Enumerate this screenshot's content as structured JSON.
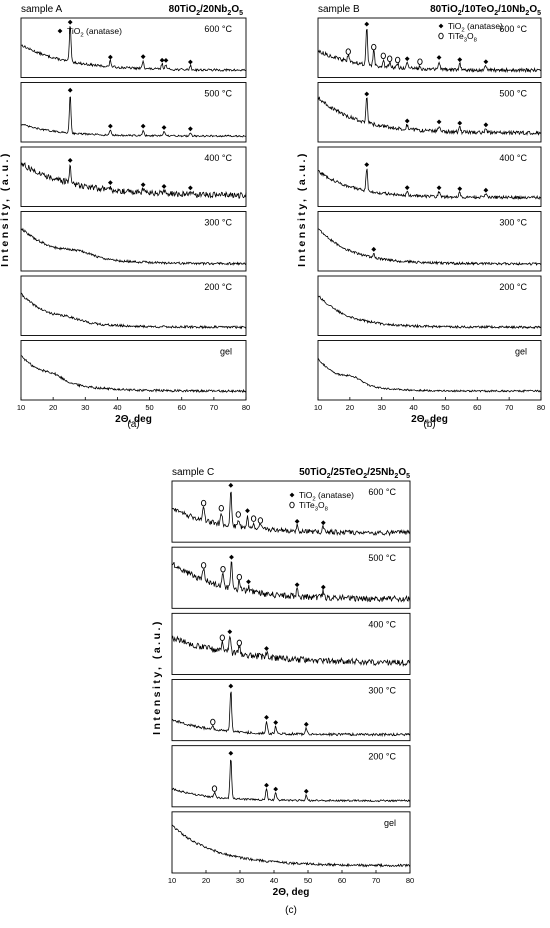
{
  "chart_data": [
    {
      "type": "line",
      "panel_label": "(a)",
      "sample_label": "sample A",
      "title": "80TiO2/20Nb2O5",
      "legend": [
        {
          "marker": "diamond",
          "label": "TiO2 (anatase)"
        }
      ],
      "xlabel": "2Θ, deg",
      "ylabel": "Intensity, (a.u.)",
      "xlim": [
        10,
        80
      ],
      "xticks": [
        10,
        20,
        30,
        40,
        50,
        60,
        70,
        80
      ],
      "series": [
        {
          "name": "600 °C",
          "background": {
            "start": 0.55,
            "decay": 0.07,
            "floor": 0.12,
            "noise": 0.02
          },
          "peaks": [
            {
              "x": 25.3,
              "h": 0.62,
              "marker": "diamond"
            },
            {
              "x": 37.8,
              "h": 0.1,
              "marker": "diamond"
            },
            {
              "x": 48.0,
              "h": 0.14,
              "marker": "diamond"
            },
            {
              "x": 53.9,
              "h": 0.09,
              "marker": "diamond"
            },
            {
              "x": 55.1,
              "h": 0.09,
              "marker": "diamond"
            },
            {
              "x": 62.7,
              "h": 0.07,
              "marker": "diamond"
            }
          ]
        },
        {
          "name": "500 °C",
          "background": {
            "start": 0.3,
            "decay": 0.09,
            "floor": 0.1,
            "noise": 0.015
          },
          "peaks": [
            {
              "x": 25.3,
              "h": 0.66,
              "marker": "diamond"
            },
            {
              "x": 37.8,
              "h": 0.09,
              "marker": "diamond"
            },
            {
              "x": 48.0,
              "h": 0.1,
              "marker": "diamond"
            },
            {
              "x": 54.5,
              "h": 0.08,
              "marker": "diamond"
            },
            {
              "x": 62.7,
              "h": 0.06,
              "marker": "diamond"
            }
          ]
        },
        {
          "name": "400 °C",
          "background": {
            "start": 0.72,
            "decay": 0.06,
            "floor": 0.18,
            "noise": 0.05
          },
          "peaks": [
            {
              "x": 25.3,
              "h": 0.32,
              "marker": "diamond"
            },
            {
              "x": 37.8,
              "h": 0.06,
              "marker": "diamond"
            },
            {
              "x": 48.0,
              "h": 0.07,
              "marker": "diamond"
            },
            {
              "x": 54.5,
              "h": 0.06,
              "marker": "diamond"
            },
            {
              "x": 62.7,
              "h": 0.05,
              "marker": "diamond"
            }
          ]
        },
        {
          "name": "300 °C",
          "background": {
            "start": 0.72,
            "decay": 0.08,
            "floor": 0.12,
            "noise": 0.02,
            "hump": {
              "x": 28,
              "h": 0.08,
              "w": 6
            }
          },
          "peaks": []
        },
        {
          "name": "200 °C",
          "background": {
            "start": 0.7,
            "decay": 0.1,
            "floor": 0.14,
            "noise": 0.02,
            "hump": {
              "x": 25,
              "h": 0.05,
              "w": 5
            }
          },
          "peaks": []
        },
        {
          "name": "gel",
          "background": {
            "start": 0.75,
            "decay": 0.1,
            "floor": 0.15,
            "noise": 0.02,
            "hump": {
              "x": 20,
              "h": 0.08,
              "w": 4
            }
          },
          "peaks": []
        }
      ]
    },
    {
      "type": "line",
      "panel_label": "(b)",
      "sample_label": "sample B",
      "title": "80TiO2/10TeO2/10Nb2O5",
      "legend": [
        {
          "marker": "diamond",
          "label": "TiO2 (anatase)"
        },
        {
          "marker": "circle",
          "label": "TiTe3O8"
        }
      ],
      "xlabel": "2Θ, deg",
      "ylabel": "Intensity, (a.u.)",
      "xlim": [
        10,
        80
      ],
      "xticks": [
        10,
        20,
        30,
        40,
        50,
        60,
        70,
        80
      ],
      "series": [
        {
          "name": "600 °C",
          "background": {
            "start": 0.45,
            "decay": 0.08,
            "floor": 0.12,
            "noise": 0.03
          },
          "peaks": [
            {
              "x": 19.5,
              "h": 0.1,
              "marker": "circle"
            },
            {
              "x": 25.3,
              "h": 0.62,
              "marker": "diamond"
            },
            {
              "x": 27.5,
              "h": 0.25,
              "marker": "circle"
            },
            {
              "x": 30.5,
              "h": 0.12,
              "marker": "circle"
            },
            {
              "x": 32.5,
              "h": 0.08,
              "marker": "circle"
            },
            {
              "x": 35.0,
              "h": 0.07,
              "marker": "circle"
            },
            {
              "x": 38.0,
              "h": 0.1,
              "marker": "diamond"
            },
            {
              "x": 42.0,
              "h": 0.06,
              "marker": "circle"
            },
            {
              "x": 48.0,
              "h": 0.14,
              "marker": "diamond"
            },
            {
              "x": 54.5,
              "h": 0.11,
              "marker": "diamond"
            },
            {
              "x": 62.7,
              "h": 0.08,
              "marker": "diamond"
            }
          ]
        },
        {
          "name": "500 °C",
          "background": {
            "start": 0.75,
            "decay": 0.08,
            "floor": 0.15,
            "noise": 0.03
          },
          "peaks": [
            {
              "x": 25.3,
              "h": 0.42,
              "marker": "diamond"
            },
            {
              "x": 38.0,
              "h": 0.08,
              "marker": "diamond"
            },
            {
              "x": 48.0,
              "h": 0.1,
              "marker": "diamond"
            },
            {
              "x": 54.5,
              "h": 0.09,
              "marker": "diamond"
            },
            {
              "x": 62.7,
              "h": 0.07,
              "marker": "diamond"
            }
          ]
        },
        {
          "name": "400 °C",
          "background": {
            "start": 0.6,
            "decay": 0.09,
            "floor": 0.15,
            "noise": 0.025
          },
          "peaks": [
            {
              "x": 25.3,
              "h": 0.38,
              "marker": "diamond"
            },
            {
              "x": 38.0,
              "h": 0.07,
              "marker": "diamond"
            },
            {
              "x": 48.0,
              "h": 0.09,
              "marker": "diamond"
            },
            {
              "x": 54.5,
              "h": 0.08,
              "marker": "diamond"
            },
            {
              "x": 62.7,
              "h": 0.06,
              "marker": "diamond"
            }
          ]
        },
        {
          "name": "300 °C",
          "background": {
            "start": 0.72,
            "decay": 0.1,
            "floor": 0.12,
            "noise": 0.02
          },
          "peaks": [
            {
              "x": 27.5,
              "h": 0.08,
              "marker": "diamond"
            }
          ]
        },
        {
          "name": "200 °C",
          "background": {
            "start": 0.68,
            "decay": 0.11,
            "floor": 0.14,
            "noise": 0.02
          },
          "peaks": []
        },
        {
          "name": "gel",
          "background": {
            "start": 0.7,
            "decay": 0.12,
            "floor": 0.15,
            "noise": 0.015,
            "hump": {
              "x": 21,
              "h": 0.1,
              "w": 4
            }
          },
          "peaks": []
        }
      ]
    },
    {
      "type": "line",
      "panel_label": "(c)",
      "sample_label": "sample C",
      "title": "50TiO2/25TeO2/25Nb2O5",
      "legend": [
        {
          "marker": "diamond",
          "label": "TiO2 (anatase)"
        },
        {
          "marker": "circle",
          "label": "TiTe3O8"
        }
      ],
      "xlabel": "2Θ, deg",
      "ylabel": "Intensity, (a.u.)",
      "xlim": [
        10,
        80
      ],
      "xticks": [
        10,
        20,
        30,
        40,
        50,
        60,
        70,
        80
      ],
      "series": [
        {
          "name": "600 °C",
          "background": {
            "start": 0.55,
            "decay": 0.07,
            "floor": 0.15,
            "noise": 0.04
          },
          "peaks": [
            {
              "x": 19.3,
              "h": 0.22,
              "marker": "circle"
            },
            {
              "x": 24.5,
              "h": 0.2,
              "marker": "circle"
            },
            {
              "x": 27.3,
              "h": 0.6,
              "marker": "diamond"
            },
            {
              "x": 29.5,
              "h": 0.14,
              "marker": "circle"
            },
            {
              "x": 32.2,
              "h": 0.22,
              "marker": "diamond"
            },
            {
              "x": 34.0,
              "h": 0.1,
              "marker": "circle"
            },
            {
              "x": 36.0,
              "h": 0.08,
              "marker": "circle"
            },
            {
              "x": 46.8,
              "h": 0.1,
              "marker": "diamond"
            },
            {
              "x": 54.5,
              "h": 0.09,
              "marker": "diamond"
            }
          ]
        },
        {
          "name": "500 °C",
          "background": {
            "start": 0.75,
            "decay": 0.07,
            "floor": 0.15,
            "noise": 0.05
          },
          "peaks": [
            {
              "x": 19.3,
              "h": 0.18,
              "marker": "circle"
            },
            {
              "x": 25.0,
              "h": 0.22,
              "marker": "circle"
            },
            {
              "x": 27.5,
              "h": 0.45,
              "marker": "diamond"
            },
            {
              "x": 29.8,
              "h": 0.15,
              "marker": "circle"
            },
            {
              "x": 32.5,
              "h": 0.1,
              "marker": "diamond"
            },
            {
              "x": 46.8,
              "h": 0.13,
              "marker": "diamond"
            },
            {
              "x": 54.5,
              "h": 0.11,
              "marker": "diamond"
            }
          ]
        },
        {
          "name": "400 °C",
          "background": {
            "start": 0.6,
            "decay": 0.05,
            "floor": 0.18,
            "noise": 0.05
          },
          "peaks": [
            {
              "x": 24.8,
              "h": 0.16,
              "marker": "circle"
            },
            {
              "x": 27.0,
              "h": 0.28,
              "marker": "diamond"
            },
            {
              "x": 29.8,
              "h": 0.12,
              "marker": "circle"
            },
            {
              "x": 37.8,
              "h": 0.08,
              "marker": "diamond"
            }
          ]
        },
        {
          "name": "300 °C",
          "background": {
            "start": 0.35,
            "decay": 0.09,
            "floor": 0.1,
            "noise": 0.02
          },
          "peaks": [
            {
              "x": 22.0,
              "h": 0.06,
              "marker": "circle"
            },
            {
              "x": 27.3,
              "h": 0.68,
              "marker": "diamond"
            },
            {
              "x": 37.8,
              "h": 0.2,
              "marker": "diamond"
            },
            {
              "x": 40.5,
              "h": 0.12,
              "marker": "diamond"
            },
            {
              "x": 49.5,
              "h": 0.1,
              "marker": "diamond"
            }
          ]
        },
        {
          "name": "200 °C",
          "background": {
            "start": 0.3,
            "decay": 0.1,
            "floor": 0.1,
            "noise": 0.015
          },
          "peaks": [
            {
              "x": 22.5,
              "h": 0.08,
              "marker": "circle"
            },
            {
              "x": 27.3,
              "h": 0.68,
              "marker": "diamond"
            },
            {
              "x": 37.8,
              "h": 0.18,
              "marker": "diamond"
            },
            {
              "x": 40.5,
              "h": 0.12,
              "marker": "diamond"
            },
            {
              "x": 49.5,
              "h": 0.09,
              "marker": "diamond"
            }
          ]
        },
        {
          "name": "gel",
          "background": {
            "start": 0.78,
            "decay": 0.08,
            "floor": 0.12,
            "noise": 0.02
          },
          "peaks": []
        }
      ]
    }
  ]
}
